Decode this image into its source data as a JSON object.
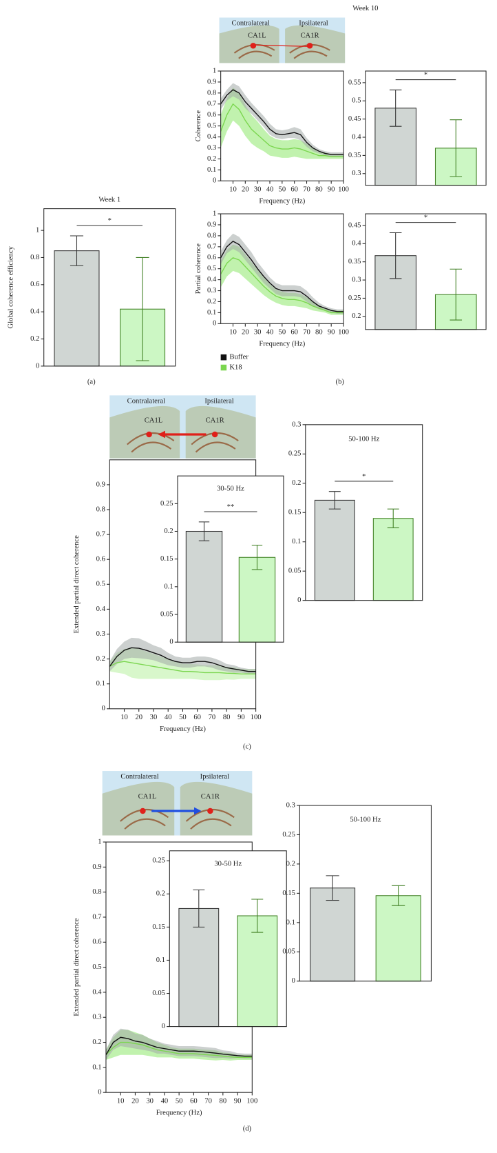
{
  "chart_data": [
    {
      "type": "bar",
      "title": "Week 1",
      "ylabel": "Global coherence efficiency",
      "categories": [
        null,
        null
      ],
      "values": [
        0.85,
        0.42
      ],
      "errors": [
        0.11,
        0.38
      ],
      "colors": [
        "#d0d6d3",
        "#ccf7c4"
      ],
      "edge_colors": [
        "#333333",
        "#3f7f22"
      ],
      "ylim": [
        0,
        1.16
      ],
      "yticks": [
        0,
        0.2,
        0.4,
        0.6,
        0.8,
        1
      ],
      "significance": "*"
    },
    {
      "type": "line",
      "ylabel": "Coherence",
      "xlabel": "Frequency (Hz)",
      "x": [
        0,
        5,
        10,
        15,
        20,
        25,
        30,
        35,
        40,
        45,
        50,
        55,
        60,
        65,
        70,
        75,
        80,
        85,
        90,
        95,
        100
      ],
      "xlim": [
        0,
        100
      ],
      "xticks": [
        10,
        20,
        30,
        40,
        50,
        60,
        70,
        80,
        90,
        100
      ],
      "ylim": [
        0,
        1
      ],
      "yticks": [
        0,
        0.1,
        0.2,
        0.3,
        0.4,
        0.5,
        0.6,
        0.7,
        0.8,
        0.9,
        1
      ],
      "series": [
        {
          "name": "Buffer",
          "color": "#111111",
          "band_color": "#a3aaa7",
          "values": [
            0.7,
            0.78,
            0.83,
            0.8,
            0.72,
            0.66,
            0.6,
            0.54,
            0.47,
            0.43,
            0.42,
            0.43,
            0.44,
            0.42,
            0.35,
            0.3,
            0.27,
            0.25,
            0.24,
            0.24,
            0.24
          ],
          "errors": [
            0.05,
            0.05,
            0.06,
            0.06,
            0.06,
            0.05,
            0.05,
            0.05,
            0.05,
            0.04,
            0.04,
            0.04,
            0.05,
            0.05,
            0.04,
            0.03,
            0.02,
            0.02,
            0.02,
            0.02,
            0.02
          ]
        },
        {
          "name": "K18",
          "color": "#7bd64f",
          "band_color": "#8ee86b",
          "values": [
            0.45,
            0.6,
            0.7,
            0.65,
            0.55,
            0.47,
            0.42,
            0.37,
            0.32,
            0.3,
            0.29,
            0.29,
            0.3,
            0.29,
            0.27,
            0.25,
            0.23,
            0.23,
            0.22,
            0.22,
            0.22
          ],
          "errors": [
            0.15,
            0.15,
            0.15,
            0.15,
            0.14,
            0.13,
            0.12,
            0.1,
            0.09,
            0.08,
            0.08,
            0.08,
            0.08,
            0.08,
            0.07,
            0.05,
            0.03,
            0.03,
            0.02,
            0.02,
            0.02
          ]
        }
      ]
    },
    {
      "type": "bar",
      "categories": [
        null,
        null
      ],
      "values": [
        0.48,
        0.37
      ],
      "errors": [
        0.05,
        0.078
      ],
      "colors": [
        "#d0d6d3",
        "#ccf7c4"
      ],
      "edge_colors": [
        "#333333",
        "#3f7f22"
      ],
      "ylim": [
        0.268,
        0.582
      ],
      "yticks": [
        0.3,
        0.35,
        0.4,
        0.45,
        0.5,
        0.55
      ],
      "significance": "*"
    },
    {
      "type": "line",
      "ylabel": "Partial coherence",
      "xlabel": "Frequency (Hz)",
      "x": [
        0,
        5,
        10,
        15,
        20,
        25,
        30,
        35,
        40,
        45,
        50,
        55,
        60,
        65,
        70,
        75,
        80,
        85,
        90,
        95,
        100
      ],
      "xlim": [
        0,
        100
      ],
      "xticks": [
        10,
        20,
        30,
        40,
        50,
        60,
        70,
        80,
        90,
        100
      ],
      "ylim": [
        0,
        1
      ],
      "yticks": [
        0,
        0.1,
        0.2,
        0.3,
        0.4,
        0.5,
        0.6,
        0.7,
        0.8,
        0.9,
        1
      ],
      "legend": true,
      "series": [
        {
          "name": "Buffer",
          "color": "#111111",
          "band_color": "#a3aaa7",
          "values": [
            0.6,
            0.7,
            0.75,
            0.72,
            0.65,
            0.58,
            0.5,
            0.43,
            0.37,
            0.32,
            0.3,
            0.3,
            0.3,
            0.29,
            0.25,
            0.2,
            0.16,
            0.14,
            0.12,
            0.11,
            0.11
          ],
          "errors": [
            0.06,
            0.06,
            0.07,
            0.07,
            0.07,
            0.07,
            0.06,
            0.06,
            0.05,
            0.05,
            0.05,
            0.05,
            0.05,
            0.05,
            0.05,
            0.04,
            0.03,
            0.02,
            0.02,
            0.02,
            0.02
          ]
        },
        {
          "name": "K18",
          "color": "#7bd64f",
          "band_color": "#8ee86b",
          "values": [
            0.45,
            0.55,
            0.6,
            0.58,
            0.52,
            0.46,
            0.4,
            0.34,
            0.29,
            0.25,
            0.23,
            0.22,
            0.22,
            0.21,
            0.19,
            0.16,
            0.14,
            0.12,
            0.1,
            0.1,
            0.1
          ],
          "errors": [
            0.12,
            0.12,
            0.12,
            0.12,
            0.11,
            0.1,
            0.09,
            0.08,
            0.07,
            0.06,
            0.06,
            0.06,
            0.06,
            0.06,
            0.05,
            0.04,
            0.03,
            0.02,
            0.02,
            0.02,
            0.02
          ]
        }
      ]
    },
    {
      "type": "bar",
      "categories": [
        null,
        null
      ],
      "values": [
        0.367,
        0.26
      ],
      "errors": [
        0.063,
        0.07
      ],
      "colors": [
        "#d0d6d3",
        "#ccf7c4"
      ],
      "edge_colors": [
        "#333333",
        "#3f7f22"
      ],
      "ylim": [
        0.164,
        0.482
      ],
      "yticks": [
        0.2,
        0.25,
        0.3,
        0.35,
        0.4,
        0.45
      ],
      "significance": "*"
    },
    {
      "type": "line",
      "ylabel": "Extended partial direct coherence",
      "xlabel": "Frequency (Hz)",
      "x": [
        0,
        5,
        10,
        15,
        20,
        25,
        30,
        35,
        40,
        45,
        50,
        55,
        60,
        65,
        70,
        75,
        80,
        85,
        90,
        95,
        100
      ],
      "xlim": [
        0,
        100
      ],
      "xticks": [
        10,
        20,
        30,
        40,
        50,
        60,
        70,
        80,
        90,
        100
      ],
      "ylim": [
        0,
        1
      ],
      "yticks": [
        0,
        0.1,
        0.2,
        0.3,
        0.4,
        0.5,
        0.6,
        0.7,
        0.8,
        0.9
      ],
      "series": [
        {
          "name": "Buffer",
          "color": "#111111",
          "band_color": "#a3aaa7",
          "values": [
            0.17,
            0.21,
            0.235,
            0.245,
            0.243,
            0.235,
            0.225,
            0.215,
            0.2,
            0.19,
            0.185,
            0.185,
            0.19,
            0.19,
            0.185,
            0.175,
            0.165,
            0.16,
            0.155,
            0.15,
            0.15
          ],
          "errors": [
            0.02,
            0.03,
            0.035,
            0.04,
            0.04,
            0.035,
            0.03,
            0.03,
            0.025,
            0.02,
            0.02,
            0.02,
            0.02,
            0.02,
            0.02,
            0.02,
            0.015,
            0.015,
            0.01,
            0.01,
            0.01
          ]
        },
        {
          "name": "K18",
          "color": "#7bd64f",
          "band_color": "#b8f0a0",
          "values": [
            0.17,
            0.185,
            0.19,
            0.185,
            0.18,
            0.175,
            0.17,
            0.165,
            0.16,
            0.155,
            0.15,
            0.15,
            0.148,
            0.145,
            0.145,
            0.145,
            0.143,
            0.142,
            0.14,
            0.14,
            0.14
          ],
          "errors": [
            0.02,
            0.04,
            0.05,
            0.06,
            0.06,
            0.055,
            0.05,
            0.045,
            0.04,
            0.035,
            0.03,
            0.03,
            0.03,
            0.03,
            0.03,
            0.03,
            0.025,
            0.025,
            0.02,
            0.02,
            0.02
          ]
        }
      ]
    },
    {
      "type": "bar",
      "title": "30-50 Hz",
      "categories": [
        null,
        null
      ],
      "values": [
        0.2,
        0.153
      ],
      "errors": [
        0.017,
        0.022
      ],
      "colors": [
        "#d0d6d3",
        "#ccf7c4"
      ],
      "edge_colors": [
        "#333333",
        "#3f7f22"
      ],
      "ylim": [
        0,
        0.3
      ],
      "yticks": [
        0,
        0.05,
        0.1,
        0.15,
        0.2,
        0.25
      ],
      "significance": "**"
    },
    {
      "type": "bar",
      "title": "50-100 Hz",
      "categories": [
        null,
        null
      ],
      "values": [
        0.171,
        0.14
      ],
      "errors": [
        0.015,
        0.016
      ],
      "colors": [
        "#d0d6d3",
        "#ccf7c4"
      ],
      "edge_colors": [
        "#333333",
        "#3f7f22"
      ],
      "ylim": [
        0,
        0.3
      ],
      "yticks": [
        0,
        0.05,
        0.1,
        0.15,
        0.2,
        0.25,
        0.3
      ],
      "significance": "*"
    },
    {
      "type": "line",
      "ylabel": "Extended partial direct coherence",
      "xlabel": "Frequency (Hz)",
      "x": [
        0,
        5,
        10,
        15,
        20,
        25,
        30,
        35,
        40,
        45,
        50,
        55,
        60,
        65,
        70,
        75,
        80,
        85,
        90,
        95,
        100
      ],
      "xlim": [
        0,
        100
      ],
      "xticks": [
        10,
        20,
        30,
        40,
        50,
        60,
        70,
        80,
        90,
        100
      ],
      "ylim": [
        0,
        1
      ],
      "yticks": [
        0,
        0.1,
        0.2,
        0.3,
        0.4,
        0.5,
        0.6,
        0.7,
        0.8,
        0.9,
        1
      ],
      "series": [
        {
          "name": "Buffer",
          "color": "#111111",
          "band_color": "#a3aaa7",
          "values": [
            0.15,
            0.2,
            0.22,
            0.215,
            0.205,
            0.2,
            0.19,
            0.18,
            0.175,
            0.17,
            0.165,
            0.165,
            0.165,
            0.163,
            0.16,
            0.157,
            0.153,
            0.15,
            0.147,
            0.145,
            0.145
          ],
          "errors": [
            0.02,
            0.03,
            0.035,
            0.035,
            0.03,
            0.03,
            0.025,
            0.025,
            0.02,
            0.02,
            0.02,
            0.02,
            0.02,
            0.02,
            0.02,
            0.02,
            0.015,
            0.015,
            0.01,
            0.01,
            0.01
          ]
        },
        {
          "name": "K18",
          "color": "#7bd64f",
          "band_color": "#8ee86b",
          "values": [
            0.15,
            0.18,
            0.2,
            0.2,
            0.195,
            0.19,
            0.18,
            0.17,
            0.165,
            0.16,
            0.155,
            0.155,
            0.155,
            0.152,
            0.15,
            0.148,
            0.145,
            0.142,
            0.14,
            0.14,
            0.14
          ],
          "errors": [
            0.02,
            0.04,
            0.05,
            0.05,
            0.045,
            0.04,
            0.035,
            0.03,
            0.025,
            0.02,
            0.02,
            0.02,
            0.02,
            0.02,
            0.02,
            0.02,
            0.015,
            0.015,
            0.01,
            0.01,
            0.01
          ]
        }
      ]
    },
    {
      "type": "bar",
      "title": "30-50 Hz",
      "categories": [
        null,
        null
      ],
      "values": [
        0.178,
        0.167
      ],
      "errors": [
        0.028,
        0.025
      ],
      "colors": [
        "#d0d6d3",
        "#ccf7c4"
      ],
      "edge_colors": [
        "#333333",
        "#3f7f22"
      ],
      "ylim": [
        0,
        0.265
      ],
      "yticks": [
        0,
        0.05,
        0.1,
        0.15,
        0.2,
        0.25
      ]
    },
    {
      "type": "bar",
      "title": "50-100 Hz",
      "categories": [
        null,
        null
      ],
      "values": [
        0.159,
        0.146
      ],
      "errors": [
        0.021,
        0.017
      ],
      "colors": [
        "#d0d6d3",
        "#ccf7c4"
      ],
      "edge_colors": [
        "#333333",
        "#3f7f22"
      ],
      "ylim": [
        0,
        0.3
      ],
      "yticks": [
        0,
        0.05,
        0.1,
        0.15,
        0.2,
        0.25,
        0.3
      ]
    }
  ],
  "week10": "Week 10",
  "panel_labels": [
    "(a)",
    "(b)",
    "(c)",
    "(d)"
  ],
  "brain_images": [
    {
      "contralateral": "Contralateral",
      "ipsilateral": "Ipsilateral",
      "left": "CA1L",
      "right": "CA1R"
    },
    {
      "contralateral": "Contralateral",
      "ipsilateral": "Ipsilateral",
      "left": "CA1L",
      "right": "CA1R"
    },
    {
      "contralateral": "Contralateral",
      "ipsilateral": "Ipsilateral",
      "left": "CA1L",
      "right": "CA1R"
    }
  ]
}
